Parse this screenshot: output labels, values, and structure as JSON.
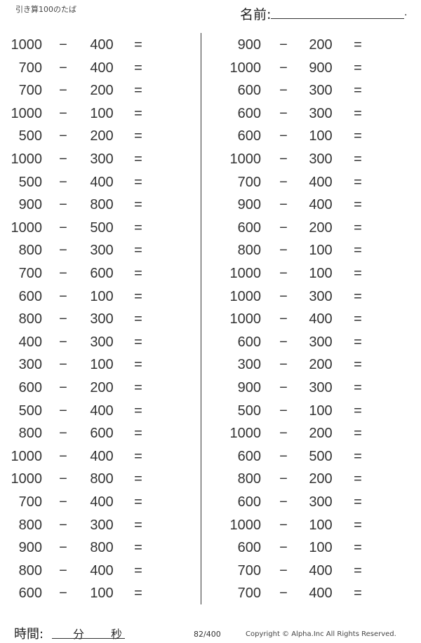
{
  "header": {
    "title": "引き算100のたば",
    "name_label": "名前:",
    "name_end": "."
  },
  "operator": "−",
  "equals": "=",
  "left": [
    [
      "1000",
      "400"
    ],
    [
      "700",
      "400"
    ],
    [
      "700",
      "200"
    ],
    [
      "1000",
      "100"
    ],
    [
      "500",
      "200"
    ],
    [
      "1000",
      "300"
    ],
    [
      "500",
      "400"
    ],
    [
      "900",
      "800"
    ],
    [
      "1000",
      "500"
    ],
    [
      "800",
      "300"
    ],
    [
      "700",
      "600"
    ],
    [
      "600",
      "100"
    ],
    [
      "800",
      "300"
    ],
    [
      "400",
      "300"
    ],
    [
      "300",
      "100"
    ],
    [
      "600",
      "200"
    ],
    [
      "500",
      "400"
    ],
    [
      "800",
      "600"
    ],
    [
      "1000",
      "400"
    ],
    [
      "1000",
      "800"
    ],
    [
      "700",
      "400"
    ],
    [
      "800",
      "300"
    ],
    [
      "900",
      "800"
    ],
    [
      "800",
      "400"
    ],
    [
      "600",
      "100"
    ]
  ],
  "right": [
    [
      "900",
      "200"
    ],
    [
      "1000",
      "900"
    ],
    [
      "600",
      "300"
    ],
    [
      "600",
      "300"
    ],
    [
      "600",
      "100"
    ],
    [
      "1000",
      "300"
    ],
    [
      "700",
      "400"
    ],
    [
      "900",
      "400"
    ],
    [
      "600",
      "200"
    ],
    [
      "800",
      "100"
    ],
    [
      "1000",
      "100"
    ],
    [
      "1000",
      "300"
    ],
    [
      "1000",
      "400"
    ],
    [
      "600",
      "300"
    ],
    [
      "300",
      "200"
    ],
    [
      "900",
      "300"
    ],
    [
      "500",
      "100"
    ],
    [
      "1000",
      "200"
    ],
    [
      "600",
      "500"
    ],
    [
      "800",
      "200"
    ],
    [
      "600",
      "300"
    ],
    [
      "1000",
      "100"
    ],
    [
      "600",
      "100"
    ],
    [
      "700",
      "400"
    ],
    [
      "700",
      "400"
    ]
  ],
  "footer": {
    "time_label": "時間:",
    "minutes": "分",
    "seconds": "秒",
    "page": "82/400",
    "copyright": "Copyright ©  Alpha.Inc All Rights Reserved."
  }
}
